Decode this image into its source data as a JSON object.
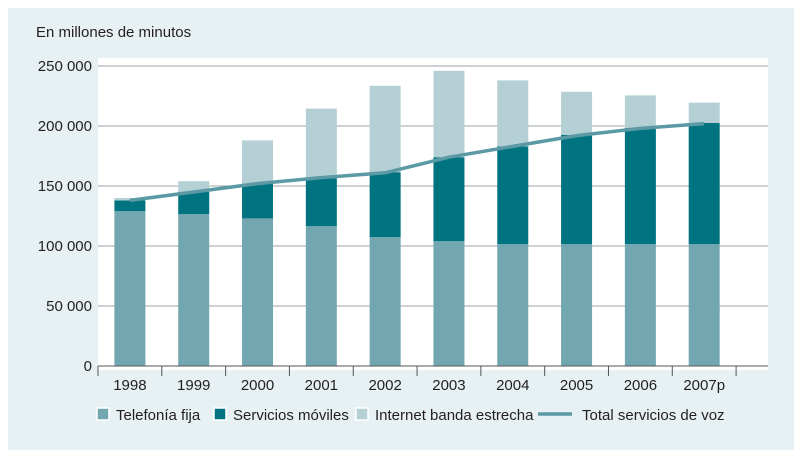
{
  "chart_data": {
    "type": "bar",
    "stacked": true,
    "ylabel": "En millones de minutos",
    "xlabel": "",
    "ylim": [
      0,
      250000
    ],
    "yticks": [
      0,
      50000,
      100000,
      150000,
      200000,
      250000
    ],
    "ytick_labels": [
      "0",
      "50 000",
      "100 000",
      "150 000",
      "200 000",
      "250 000"
    ],
    "categories": [
      "1998",
      "1999",
      "2000",
      "2001",
      "2002",
      "2003",
      "2004",
      "2005",
      "2006",
      "2007p"
    ],
    "series": [
      {
        "name": "Telefonía fija",
        "kind": "bar",
        "color": "#72a7b1",
        "values": [
          129000,
          126500,
          123000,
          116500,
          107500,
          104000,
          101500,
          101500,
          101500,
          101500
        ]
      },
      {
        "name": "Servicios móviles",
        "kind": "bar",
        "color": "#007380",
        "values": [
          9000,
          18500,
          29000,
          40000,
          54000,
          70000,
          81500,
          91000,
          97000,
          101000
        ]
      },
      {
        "name": "Internet banda estrecha",
        "kind": "bar",
        "color": "#b4d0d5",
        "values": [
          2000,
          9000,
          36000,
          58000,
          72000,
          72000,
          55000,
          36000,
          27000,
          17000
        ]
      },
      {
        "name": "Total servicios de voz",
        "kind": "line",
        "color": "#5b9aa5",
        "values": [
          138000,
          145000,
          152000,
          157000,
          161000,
          174000,
          183000,
          192000,
          198000,
          202000
        ]
      }
    ],
    "grid": true,
    "legend_position": "bottom"
  },
  "colors": {
    "background": "#e7f0f2",
    "plot_background": "#ffffff",
    "gridline": "#9fa5a6",
    "text": "#231f20"
  }
}
